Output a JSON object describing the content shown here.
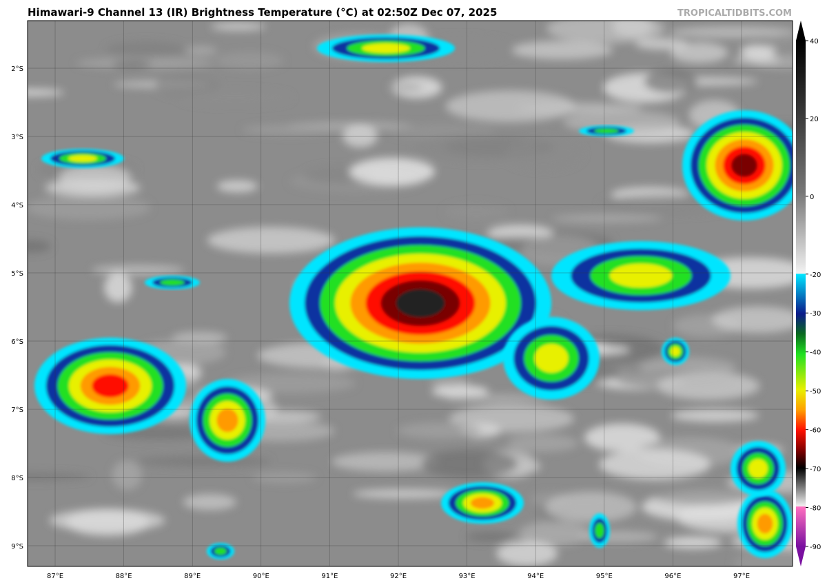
{
  "title": "Himawari-9 Channel 13 (IR) Brightness Temperature (°C) at 02:50Z Dec 07, 2025",
  "watermark": "TROPICALTIDBITS.COM",
  "map": {
    "lat_labels": [
      "2°S",
      "3°S",
      "4°S",
      "5°S",
      "6°S",
      "7°S",
      "8°S",
      "9°S"
    ],
    "lon_labels": [
      "87°E",
      "88°E",
      "89°E",
      "90°E",
      "91°E",
      "92°E",
      "93°E",
      "94°E",
      "95°E",
      "96°E",
      "97°E"
    ]
  },
  "colorbar": {
    "range": [
      -90,
      40
    ],
    "ticks": [
      40,
      20,
      0,
      -20,
      -30,
      -40,
      -50,
      -60,
      -70,
      -80,
      -90
    ]
  }
}
